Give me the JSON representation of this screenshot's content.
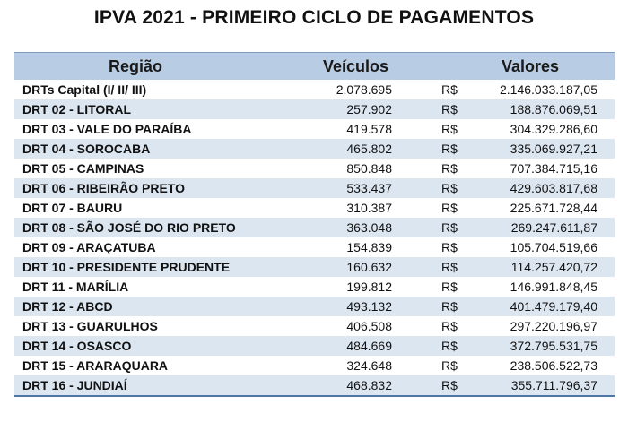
{
  "title": "IPVA 2021 - PRIMEIRO CICLO DE PAGAMENTOS",
  "headers": {
    "region": "Região",
    "vehicles": "Veículos",
    "values": "Valores"
  },
  "currency": "R$",
  "rows": [
    {
      "region": "DRTs Capital (I/ II/ III)",
      "vehicles": "2.078.695",
      "currency": "R$",
      "value": "2.146.033.187,05"
    },
    {
      "region": "DRT 02 - LITORAL",
      "vehicles": "257.902",
      "currency": "R$",
      "value": "188.876.069,51"
    },
    {
      "region": "DRT 03 - VALE DO PARAÍBA",
      "vehicles": "419.578",
      "currency": "R$",
      "value": "304.329.286,60"
    },
    {
      "region": "DRT 04 - SOROCABA",
      "vehicles": "465.802",
      "currency": "R$",
      "value": "335.069.927,21"
    },
    {
      "region": "DRT 05 - CAMPINAS",
      "vehicles": "850.848",
      "currency": "R$",
      "value": "707.384.715,16"
    },
    {
      "region": "DRT 06 - RIBEIRÃO PRETO",
      "vehicles": "533.437",
      "currency": "R$",
      "value": "429.603.817,68"
    },
    {
      "region": "DRT 07 - BAURU",
      "vehicles": "310.387",
      "currency": "R$",
      "value": "225.671.728,44"
    },
    {
      "region": "DRT 08 - SÃO JOSÉ DO RIO PRETO",
      "vehicles": "363.048",
      "currency": "R$",
      "value": "269.247.611,87"
    },
    {
      "region": "DRT 09 - ARAÇATUBA",
      "vehicles": "154.839",
      "currency": "R$",
      "value": "105.704.519,66"
    },
    {
      "region": "DRT 10 - PRESIDENTE PRUDENTE",
      "vehicles": "160.632",
      "currency": "R$",
      "value": "114.257.420,72"
    },
    {
      "region": "DRT 11 - MARÍLIA",
      "vehicles": "199.812",
      "currency": "R$",
      "value": "146.991.848,45"
    },
    {
      "region": "DRT 12 - ABCD",
      "vehicles": "493.132",
      "currency": "R$",
      "value": "401.479.179,40"
    },
    {
      "region": "DRT 13 - GUARULHOS",
      "vehicles": "406.508",
      "currency": "R$",
      "value": "297.220.196,97"
    },
    {
      "region": "DRT 14 - OSASCO",
      "vehicles": "484.669",
      "currency": "R$",
      "value": "372.795.531,75"
    },
    {
      "region": "DRT 15 - ARARAQUARA",
      "vehicles": "324.648",
      "currency": "R$",
      "value": "238.506.522,73"
    },
    {
      "region": "DRT 16 - JUNDIAÍ",
      "vehicles": "468.832",
      "currency": "R$",
      "value": "355.711.796,37"
    }
  ]
}
